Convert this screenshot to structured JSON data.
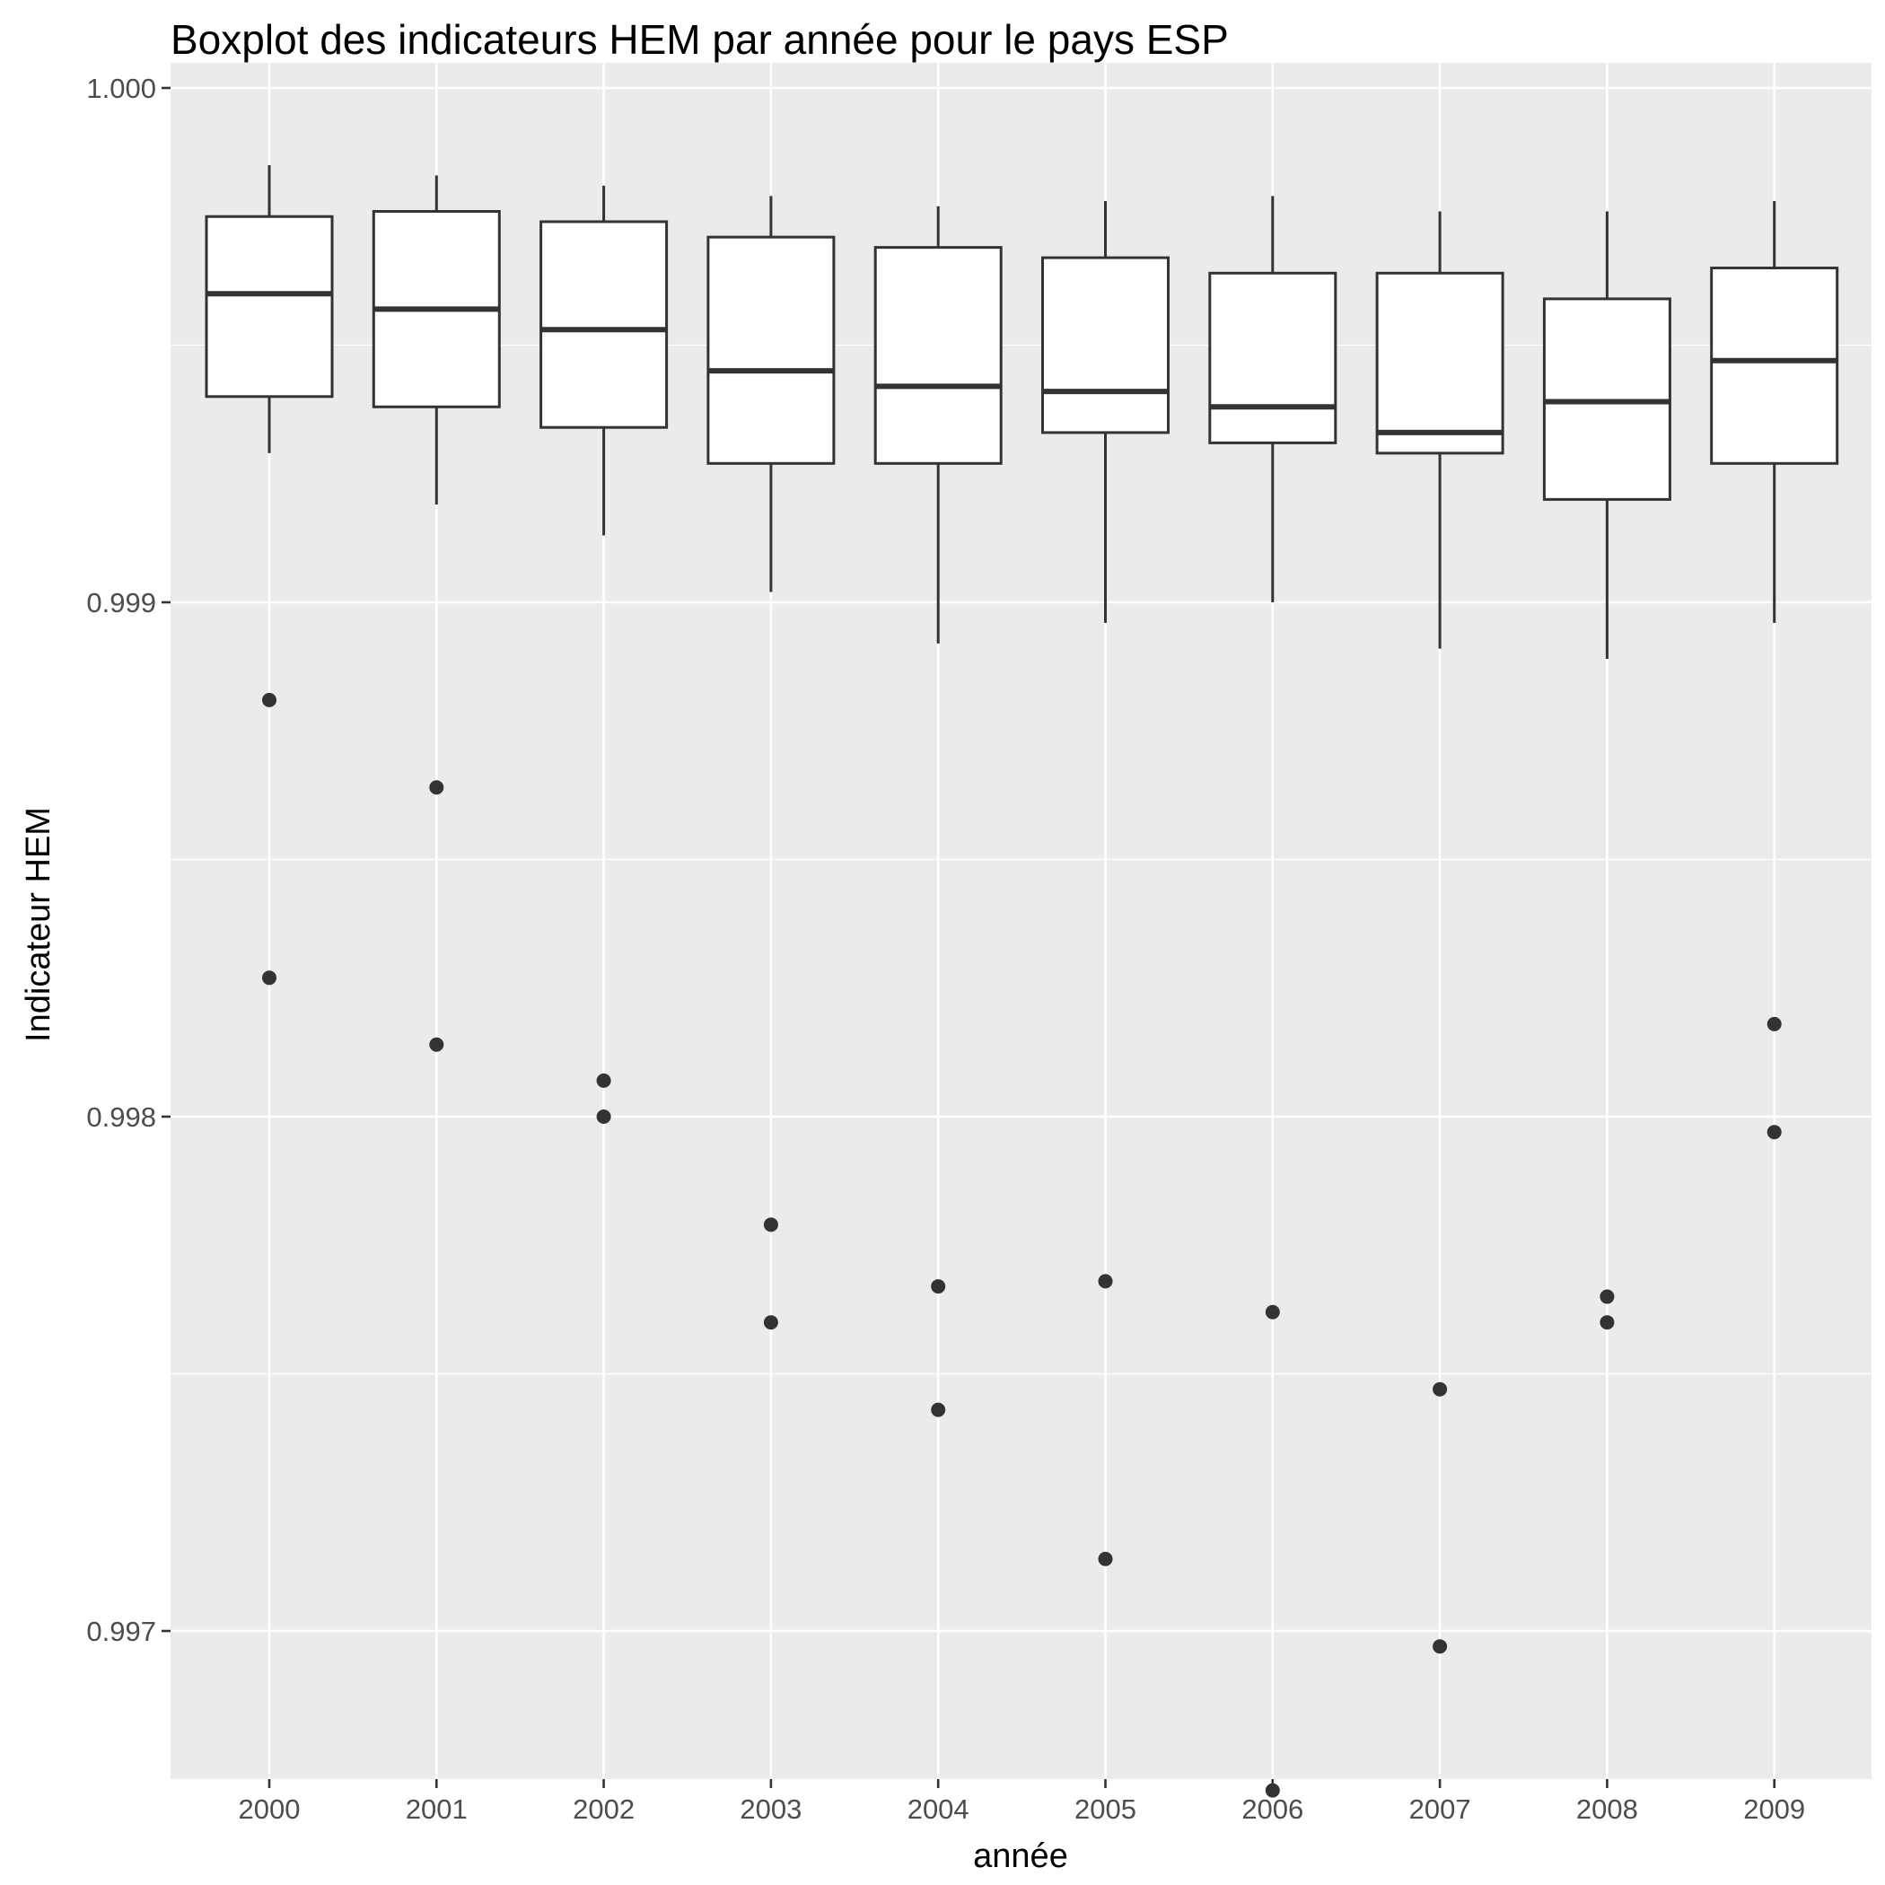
{
  "chart_data": {
    "type": "boxplot",
    "title": "Boxplot des indicateurs HEM par année pour le pays ESP",
    "xlabel": "année",
    "ylabel": "Indicateur HEM",
    "categories": [
      "2000",
      "2001",
      "2002",
      "2003",
      "2004",
      "2005",
      "2006",
      "2007",
      "2008",
      "2009"
    ],
    "ylim": [
      0.99668,
      1.0
    ],
    "yticks": [
      1.0,
      0.999,
      0.998,
      0.997
    ],
    "ytick_labels": [
      "1.000",
      "0.999",
      "0.998",
      "0.997"
    ],
    "grid": true,
    "background": "#ebebeb",
    "grid_color": "#ffffff",
    "box_fill": "#ffffff",
    "line_color": "#333333",
    "boxes": [
      {
        "category": "2000",
        "whisker_low": 0.99929,
        "q1": 0.9994,
        "median": 0.9996,
        "q3": 0.99975,
        "whisker_high": 0.99985,
        "outliers": [
          0.99881,
          0.99827
        ]
      },
      {
        "category": "2001",
        "whisker_low": 0.99919,
        "q1": 0.99938,
        "median": 0.99957,
        "q3": 0.99976,
        "whisker_high": 0.99983,
        "outliers": [
          0.99864,
          0.99814
        ]
      },
      {
        "category": "2002",
        "whisker_low": 0.99913,
        "q1": 0.99934,
        "median": 0.99953,
        "q3": 0.99974,
        "whisker_high": 0.99981,
        "outliers": [
          0.99807,
          0.998
        ]
      },
      {
        "category": "2003",
        "whisker_low": 0.99902,
        "q1": 0.99927,
        "median": 0.99945,
        "q3": 0.99971,
        "whisker_high": 0.99979,
        "outliers": [
          0.99779,
          0.9976
        ]
      },
      {
        "category": "2004",
        "whisker_low": 0.99892,
        "q1": 0.99927,
        "median": 0.99942,
        "q3": 0.99969,
        "whisker_high": 0.99977,
        "outliers": [
          0.99767,
          0.99743
        ]
      },
      {
        "category": "2005",
        "whisker_low": 0.99896,
        "q1": 0.99933,
        "median": 0.99941,
        "q3": 0.99967,
        "whisker_high": 0.99978,
        "outliers": [
          0.99768,
          0.99714
        ]
      },
      {
        "category": "2006",
        "whisker_low": 0.999,
        "q1": 0.99931,
        "median": 0.99938,
        "q3": 0.99964,
        "whisker_high": 0.99979,
        "outliers": [
          0.99762,
          0.99669
        ]
      },
      {
        "category": "2007",
        "whisker_low": 0.99891,
        "q1": 0.99929,
        "median": 0.99933,
        "q3": 0.99964,
        "whisker_high": 0.99976,
        "outliers": [
          0.99747,
          0.99697
        ]
      },
      {
        "category": "2008",
        "whisker_low": 0.99889,
        "q1": 0.9992,
        "median": 0.99939,
        "q3": 0.99959,
        "whisker_high": 0.99976,
        "outliers": [
          0.99765,
          0.9976
        ]
      },
      {
        "category": "2009",
        "whisker_low": 0.99896,
        "q1": 0.99927,
        "median": 0.99947,
        "q3": 0.99965,
        "whisker_high": 0.99978,
        "outliers": [
          0.99818,
          0.99797
        ]
      }
    ]
  }
}
